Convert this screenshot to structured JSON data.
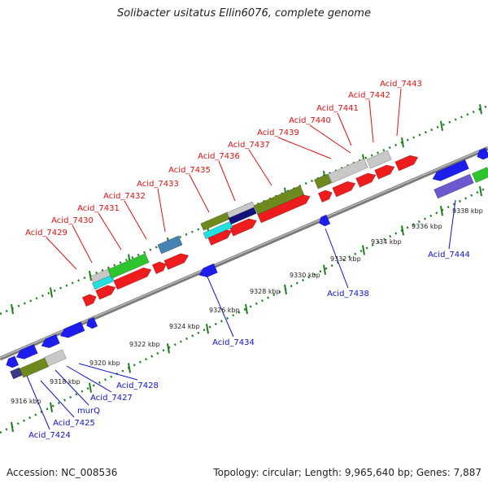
{
  "header": {
    "title": "Solibacter usitatus Ellin6076, complete genome"
  },
  "footer": {
    "accession_label": "Accession: NC_008536",
    "summary_label": "Topology: circular; Length: 9,965,640 bp; Genes: 7,887"
  },
  "colors": {
    "backbone": "#8a8a8a",
    "tick_green": "#1e7d1e",
    "forward_gene": "#ee1c1c",
    "reverse_gene": "#1d1dee",
    "olive": "#6e8a1e",
    "green": "#2ec42e",
    "cyan": "#22e0e0",
    "gray": "#c8c8c8",
    "steel": "#4682b4",
    "navy": "#12127a",
    "purple": "#6a5acd",
    "top_label": "#dd1111",
    "bottom_label": "#1111cc"
  },
  "scale_ticks": [
    "9316 kbp",
    "9318 kbp",
    "9320 kbp",
    "9322 kbp",
    "9324 kbp",
    "9326 kbp",
    "9328 kbp",
    "9330 kbp",
    "9332 kbp",
    "9334 kbp",
    "9336 kbp",
    "9338 kbp"
  ],
  "top_labels": [
    "Acid_7429",
    "Acid_7430",
    "Acid_7431",
    "Acid_7432",
    "Acid_7433",
    "Acid_7435",
    "Acid_7436",
    "Acid_7437",
    "Acid_7439",
    "Acid_7440",
    "Acid_7441",
    "Acid_7442",
    "Acid_7443"
  ],
  "bottom_labels": [
    "Acid_7424",
    "Acid_7425",
    "murQ",
    "Acid_7427",
    "Acid_7428",
    "Acid_7434",
    "Acid_7438",
    "Acid_7444"
  ]
}
